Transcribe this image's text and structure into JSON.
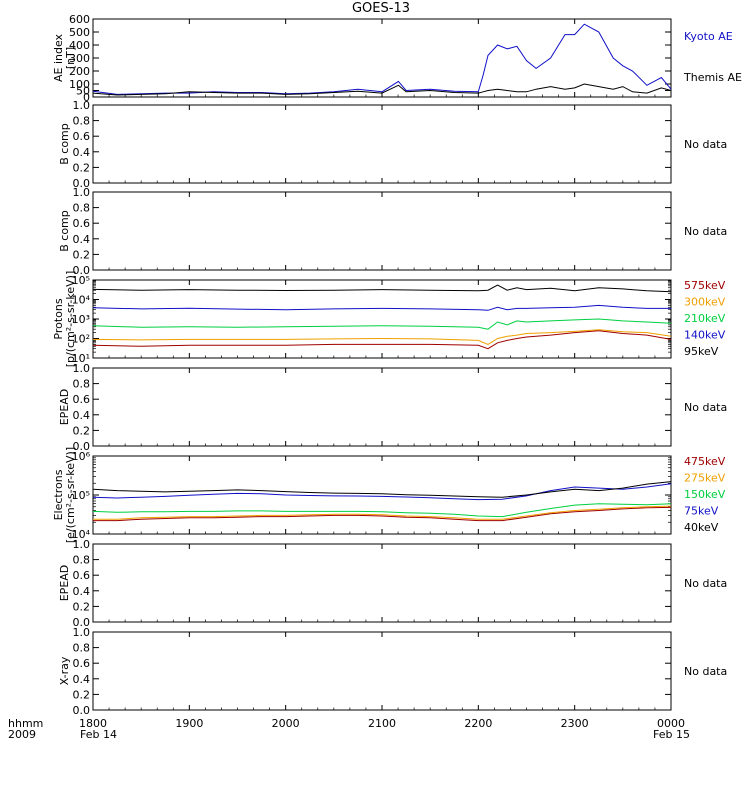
{
  "title": "GOES-13",
  "time_axis": {
    "row_label": "hhmm",
    "year_label": "2009",
    "ticks": [
      "1800",
      "1900",
      "2000",
      "2100",
      "2200",
      "2300",
      "0000"
    ],
    "date_start": "Feb 14",
    "date_end": "Feb 15"
  },
  "colors": {
    "kyoto_blue": "#1010c8",
    "black": "#000000",
    "green": "#00d040",
    "orange": "#f0a000",
    "dark_red": "#a00000"
  },
  "chart_data": [
    {
      "type": "line",
      "id": "ae",
      "ylabel": "AE index",
      "yunit": "[nT]",
      "ylim": [
        0,
        600
      ],
      "yticks": [
        "0",
        "50",
        "100",
        "200",
        "300",
        "400",
        "500",
        "600"
      ],
      "x": [
        18.0,
        18.25,
        18.5,
        18.75,
        19.0,
        19.25,
        19.5,
        19.75,
        20.0,
        20.25,
        20.5,
        20.75,
        21.0,
        21.17,
        21.25,
        21.5,
        21.75,
        22.0,
        22.05,
        22.1,
        22.2,
        22.3,
        22.4,
        22.5,
        22.6,
        22.75,
        22.9,
        23.0,
        23.1,
        23.25,
        23.4,
        23.5,
        23.6,
        23.75,
        23.9,
        24.0
      ],
      "series": [
        {
          "name": "Kyoto AE",
          "color_key": "kyoto_blue",
          "values": [
            45,
            20,
            25,
            30,
            30,
            40,
            35,
            35,
            25,
            30,
            40,
            60,
            40,
            120,
            50,
            60,
            45,
            40,
            170,
            320,
            400,
            370,
            390,
            280,
            220,
            300,
            480,
            480,
            560,
            500,
            300,
            240,
            200,
            90,
            150,
            60
          ]
        },
        {
          "name": "Themis AE",
          "color_key": "black",
          "values": [
            30,
            15,
            20,
            25,
            40,
            35,
            30,
            30,
            20,
            25,
            35,
            45,
            30,
            90,
            40,
            50,
            35,
            30,
            40,
            50,
            60,
            50,
            40,
            40,
            60,
            80,
            60,
            70,
            100,
            80,
            60,
            80,
            40,
            30,
            70,
            50
          ]
        }
      ]
    },
    {
      "type": "line",
      "id": "bcomp1",
      "ylabel": "B comp",
      "ylim": [
        0,
        1
      ],
      "yticks": [
        "0.0",
        "0.2",
        "0.4",
        "0.6",
        "0.8",
        "1.0"
      ],
      "note": "No data"
    },
    {
      "type": "line",
      "id": "bcomp2",
      "ylabel": "B comp",
      "ylim": [
        0,
        1
      ],
      "yticks": [
        "0.0",
        "0.2",
        "0.4",
        "0.6",
        "0.8",
        "1.0"
      ],
      "note": "No data"
    },
    {
      "type": "line",
      "id": "protons",
      "ylabel": "Protons",
      "yunit": "[p/(cm²-s-sr-keV)]",
      "scale": "log",
      "ylim": [
        10,
        100000
      ],
      "yticks": [
        "10¹",
        "10²",
        "10³",
        "10⁴",
        "10⁵"
      ],
      "x": [
        18.0,
        18.5,
        19.0,
        19.5,
        20.0,
        20.5,
        21.0,
        21.5,
        22.0,
        22.1,
        22.2,
        22.3,
        22.4,
        22.5,
        22.75,
        23.0,
        23.25,
        23.5,
        23.75,
        24.0
      ],
      "series": [
        {
          "name": "575keV",
          "color_key": "dark_red",
          "values": [
            45,
            40,
            45,
            45,
            45,
            50,
            50,
            50,
            45,
            30,
            60,
            80,
            100,
            120,
            150,
            200,
            250,
            180,
            150,
            90
          ]
        },
        {
          "name": "300keV",
          "color_key": "orange",
          "values": [
            90,
            85,
            90,
            90,
            90,
            95,
            100,
            95,
            80,
            50,
            100,
            130,
            150,
            180,
            200,
            230,
            280,
            220,
            200,
            130
          ]
        },
        {
          "name": "210keV",
          "color_key": "green",
          "values": [
            450,
            380,
            400,
            380,
            400,
            420,
            450,
            420,
            380,
            300,
            700,
            500,
            800,
            700,
            800,
            900,
            1000,
            800,
            700,
            600
          ]
        },
        {
          "name": "140keV",
          "color_key": "kyoto_blue",
          "values": [
            3800,
            3300,
            3600,
            3200,
            3000,
            3300,
            3500,
            3300,
            3000,
            2800,
            4000,
            3000,
            3500,
            3500,
            3800,
            4000,
            5000,
            4000,
            3500,
            3500
          ]
        },
        {
          "name": "95keV",
          "color_key": "black",
          "values": [
            33000,
            30000,
            32000,
            30000,
            29000,
            30000,
            32000,
            30000,
            28000,
            30000,
            55000,
            30000,
            40000,
            32000,
            38000,
            28000,
            40000,
            35000,
            28000,
            25000
          ]
        }
      ]
    },
    {
      "type": "line",
      "id": "epead1",
      "ylabel": "EPEAD",
      "ylim": [
        0,
        1
      ],
      "yticks": [
        "0.0",
        "0.2",
        "0.4",
        "0.6",
        "0.8",
        "1.0"
      ],
      "note": "No data"
    },
    {
      "type": "line",
      "id": "electrons",
      "ylabel": "Electrons",
      "yunit": "[e/(cm²-s-sr-keV)]",
      "scale": "log",
      "ylim": [
        10000,
        1000000
      ],
      "yticks": [
        "10⁴",
        "10⁵",
        "10⁶"
      ],
      "x": [
        18.0,
        18.25,
        18.5,
        18.75,
        19.0,
        19.25,
        19.5,
        19.75,
        20.0,
        20.25,
        20.5,
        20.75,
        21.0,
        21.25,
        21.5,
        21.75,
        22.0,
        22.25,
        22.5,
        22.75,
        23.0,
        23.25,
        23.5,
        23.75,
        24.0
      ],
      "series": [
        {
          "name": "475keV",
          "color_key": "dark_red",
          "values": [
            22000,
            22000,
            24000,
            25000,
            26000,
            26000,
            27000,
            28000,
            28000,
            29000,
            30000,
            30000,
            29000,
            27000,
            26000,
            24000,
            22000,
            22000,
            27000,
            33000,
            37000,
            40000,
            44000,
            47000,
            48000
          ]
        },
        {
          "name": "275keV",
          "color_key": "orange",
          "values": [
            24000,
            24000,
            26000,
            27000,
            28000,
            28000,
            29000,
            30000,
            30000,
            31000,
            32000,
            32000,
            31000,
            29000,
            28000,
            26000,
            24000,
            24000,
            29000,
            35000,
            40000,
            43000,
            47000,
            50000,
            52000
          ]
        },
        {
          "name": "150keV",
          "color_key": "green",
          "values": [
            38000,
            36000,
            37000,
            37000,
            38000,
            38000,
            39000,
            39000,
            38000,
            38000,
            38000,
            38000,
            37000,
            35000,
            34000,
            32000,
            29000,
            28000,
            36000,
            45000,
            55000,
            60000,
            58000,
            56000,
            60000
          ]
        },
        {
          "name": "75keV",
          "color_key": "kyoto_blue",
          "values": [
            88000,
            84000,
            88000,
            92000,
            98000,
            105000,
            110000,
            108000,
            100000,
            97000,
            95000,
            94000,
            92000,
            89000,
            85000,
            80000,
            76000,
            78000,
            95000,
            130000,
            160000,
            150000,
            140000,
            160000,
            195000
          ]
        },
        {
          "name": "40keV",
          "color_key": "black",
          "values": [
            140000,
            130000,
            125000,
            120000,
            125000,
            130000,
            135000,
            130000,
            122000,
            116000,
            112000,
            110000,
            108000,
            102000,
            98000,
            94000,
            90000,
            88000,
            100000,
            120000,
            140000,
            130000,
            150000,
            190000,
            220000
          ]
        }
      ]
    },
    {
      "type": "line",
      "id": "epead2",
      "ylabel": "EPEAD",
      "ylim": [
        0,
        1
      ],
      "yticks": [
        "0.0",
        "0.2",
        "0.4",
        "0.6",
        "0.8",
        "1.0"
      ],
      "note": "No data"
    },
    {
      "type": "line",
      "id": "xray",
      "ylabel": "X-ray",
      "ylim": [
        0,
        1
      ],
      "yticks": [
        "0.0",
        "0.2",
        "0.4",
        "0.6",
        "0.8",
        "1.0"
      ],
      "note": "No data"
    }
  ]
}
